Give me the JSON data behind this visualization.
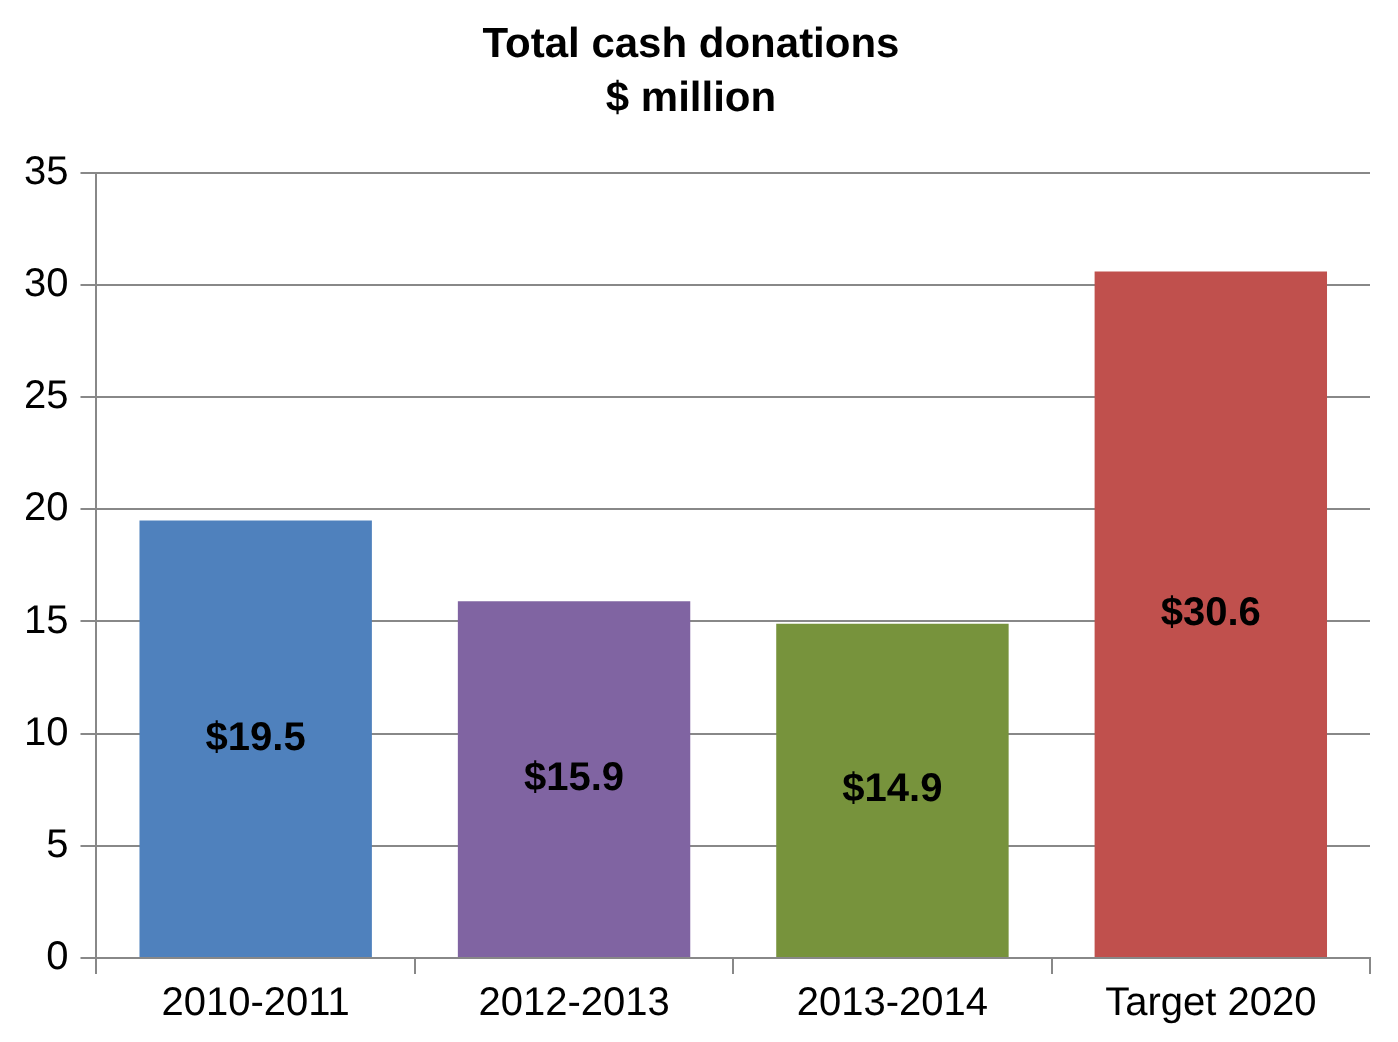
{
  "chart_data": {
    "type": "bar",
    "title": "Total cash donations",
    "subtitle": "$ million",
    "categories": [
      "2010-2011",
      "2012-2013",
      "2013-2014",
      "Target 2020"
    ],
    "values": [
      19.5,
      15.9,
      14.9,
      30.6
    ],
    "colors": [
      "#4f81bd",
      "#8064a2",
      "#77933c",
      "#c0504d"
    ],
    "value_labels": [
      "$19.5",
      "$15.9",
      "$14.9",
      "$30.6"
    ],
    "ylim": [
      0,
      35
    ],
    "yticks": [
      0,
      5,
      10,
      15,
      20,
      25,
      30,
      35
    ],
    "grid": "y",
    "legend": false
  }
}
